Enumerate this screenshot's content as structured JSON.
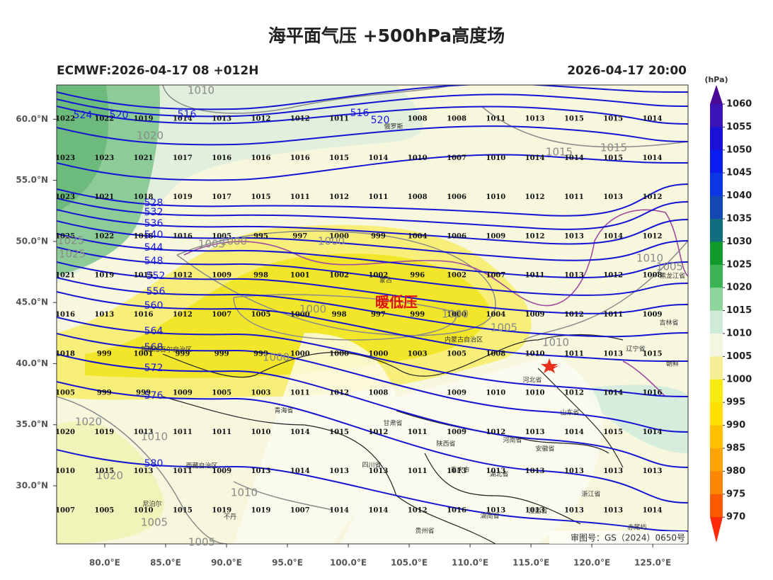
{
  "header": {
    "title": "海平面气压 +500hPa高度场",
    "subtitle_left": "ECMWF:2026-04-17 08 +012H",
    "subtitle_right": "2026-04-17 20:00"
  },
  "map": {
    "xlim": [
      76.05,
      127.9
    ],
    "ylim": [
      25.25,
      62.8
    ],
    "xticks": [
      {
        "value": 80,
        "label": "80.0°E"
      },
      {
        "value": 85,
        "label": "85.0°E"
      },
      {
        "value": 90,
        "label": "90.0°E"
      },
      {
        "value": 95,
        "label": "95.0°E"
      },
      {
        "value": 100,
        "label": "100.0°E"
      },
      {
        "value": 105,
        "label": "105.0°E"
      },
      {
        "value": 110,
        "label": "110.0°E"
      },
      {
        "value": 115,
        "label": "115.0°E"
      },
      {
        "value": 120,
        "label": "120.0°E"
      },
      {
        "value": 125,
        "label": "125.0°E"
      }
    ],
    "yticks": [
      {
        "value": 30,
        "label": "30.0°N"
      },
      {
        "value": 35,
        "label": "35.0°N"
      },
      {
        "value": 40,
        "label": "40.0°N"
      },
      {
        "value": 45,
        "label": "45.0°N"
      },
      {
        "value": 50,
        "label": "50.0°N"
      },
      {
        "value": 55,
        "label": "55.0°N"
      },
      {
        "value": 60,
        "label": "60.0°N"
      }
    ],
    "annotation": "暖低压",
    "pressure_grid": [
      [
        1022,
        1022,
        1019,
        1014,
        1013,
        1012,
        1012,
        1011,
        null,
        1008,
        1008,
        1011,
        1013,
        1015,
        1015,
        1014
      ],
      [
        1023,
        1023,
        1021,
        1017,
        1016,
        1016,
        1016,
        1015,
        1014,
        1010,
        1007,
        1010,
        1014,
        1014,
        1015,
        1014
      ],
      [
        1023,
        1021,
        1018,
        1019,
        1017,
        1015,
        1011,
        1012,
        1011,
        1008,
        1006,
        1010,
        1012,
        1011,
        1013,
        1012
      ],
      [
        1025,
        1022,
        1018,
        1016,
        1005,
        995,
        997,
        1000,
        999,
        1004,
        1006,
        1009,
        1012,
        1013,
        1014,
        1012
      ],
      [
        1021,
        1019,
        1015,
        1012,
        1009,
        998,
        1001,
        1002,
        1002,
        996,
        1002,
        1007,
        1011,
        1013,
        1012,
        1008
      ],
      [
        1016,
        1013,
        1016,
        1012,
        1007,
        1005,
        1000,
        998,
        997,
        999,
        1000,
        1004,
        1009,
        1012,
        1011,
        1009
      ],
      [
        1018,
        999,
        1001,
        999,
        999,
        999,
        1000,
        1000,
        1000,
        1003,
        1005,
        1008,
        1010,
        1011,
        1013,
        1015
      ],
      [
        1005,
        999,
        999,
        1009,
        1005,
        1003,
        1011,
        1012,
        1008,
        null,
        1009,
        1010,
        1010,
        1012,
        1014,
        1016
      ],
      [
        1020,
        1019,
        1013,
        1011,
        1011,
        1010,
        1014,
        1015,
        1012,
        1011,
        1009,
        1012,
        1013,
        1014,
        1015,
        1014
      ],
      [
        1010,
        1015,
        1013,
        1011,
        1009,
        1013,
        1014,
        1013,
        1013,
        1011,
        1013,
        1013,
        1013,
        1013,
        1013,
        1013
      ],
      [
        1007,
        1005,
        1010,
        1015,
        1019,
        1019,
        1007,
        1014,
        1014,
        1012,
        1016,
        1013,
        1013,
        1013,
        1013,
        1014
      ]
    ],
    "height_contour_labels": [
      524,
      520,
      516,
      516,
      520,
      528,
      532,
      536,
      540,
      544,
      548,
      552,
      556,
      560,
      564,
      568,
      572,
      576,
      580
    ],
    "pressure_contour_labels": [
      1010,
      1020,
      1015,
      1015,
      1025,
      1025,
      1005,
      1000,
      1000,
      1010,
      1005,
      1000,
      1000,
      1005,
      1010,
      1000,
      1020,
      1010,
      1020,
      1010,
      1005,
      1005
    ],
    "place_names": [
      "俄罗斯",
      "蒙古",
      "内蒙古自治区",
      "新疆维吾尔自治区",
      "青海省",
      "甘肃省",
      "西藏自治区",
      "四川省",
      "陕西省",
      "河南省",
      "河北省",
      "山东省",
      "安徽省",
      "湖北省",
      "湖南省",
      "江西省",
      "浙江省",
      "贵州省",
      "重庆市",
      "辽宁省",
      "吉林省",
      "黑龙江省",
      "朝鲜",
      "不丹",
      "尼泊尔",
      "赤尾屿"
    ],
    "approval_number": "审图号：GS（2024）0650号"
  },
  "colorbar": {
    "unit": "(hPa)",
    "levels": [
      1060,
      1055,
      1050,
      1045,
      1040,
      1035,
      1030,
      1025,
      1020,
      1015,
      1010,
      1005,
      1000,
      995,
      990,
      985,
      980,
      975,
      970
    ],
    "colors": [
      "#4b0a96",
      "#3a14b4",
      "#1a10d8",
      "#0a1cf0",
      "#0a36e6",
      "#1446b4",
      "#116e7e",
      "#109a2c",
      "#3cb454",
      "#8cd49c",
      "#cdebd8",
      "#f4f6e2",
      "#f5f096",
      "#f4ec10",
      "#ffe000",
      "#ffc000",
      "#ffa400",
      "#ff8600",
      "#ff5a00",
      "#ff2a0a"
    ]
  }
}
